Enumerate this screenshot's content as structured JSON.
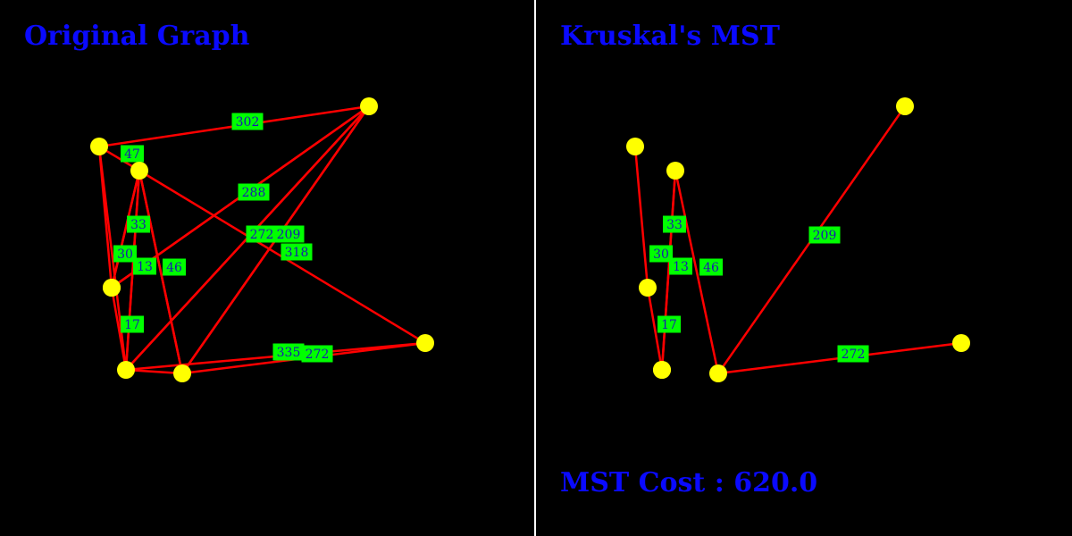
{
  "colors": {
    "background": "#000000",
    "divider": "#ffffff",
    "title": "#0a0aff",
    "edge": "#ff0000",
    "node": "#ffff00",
    "label_bg": "#00ff00",
    "label_text": "#1a1ab0"
  },
  "left_panel": {
    "title": "Original Graph",
    "edges": [
      {
        "from": "A",
        "to": "C",
        "weight": "302"
      },
      {
        "from": "A",
        "to": "B",
        "weight": "47"
      },
      {
        "from": "A",
        "to": "F",
        "weight": "30"
      },
      {
        "from": "B",
        "to": "D",
        "weight": "33"
      },
      {
        "from": "B",
        "to": "E",
        "weight": "13"
      },
      {
        "from": "B",
        "to": "G",
        "weight": "46"
      },
      {
        "from": "D",
        "to": "C",
        "weight": "288"
      },
      {
        "from": "E",
        "to": "C",
        "weight": "272"
      },
      {
        "from": "G",
        "to": "C",
        "weight": "209"
      },
      {
        "from": "B",
        "to": "H",
        "weight": "318"
      },
      {
        "from": "D",
        "to": "E",
        "weight": "17"
      },
      {
        "from": "E",
        "to": "H",
        "weight": "335"
      },
      {
        "from": "G",
        "to": "H",
        "weight": "272"
      }
    ]
  },
  "right_panel": {
    "title": "Kruskal's MST",
    "edges": [
      {
        "from": "A",
        "to": "F",
        "weight": ""
      },
      {
        "from": "B",
        "to": "D",
        "weight": "33"
      },
      {
        "from": "F",
        "to": "D",
        "weight": "30"
      },
      {
        "from": "B",
        "to": "E",
        "weight": "13"
      },
      {
        "from": "B",
        "to": "G",
        "weight": "46"
      },
      {
        "from": "D",
        "to": "E",
        "weight": "17"
      },
      {
        "from": "G",
        "to": "C",
        "weight": "209"
      },
      {
        "from": "G",
        "to": "H",
        "weight": "272"
      }
    ],
    "cost_text": "MST Cost : 620.0"
  }
}
